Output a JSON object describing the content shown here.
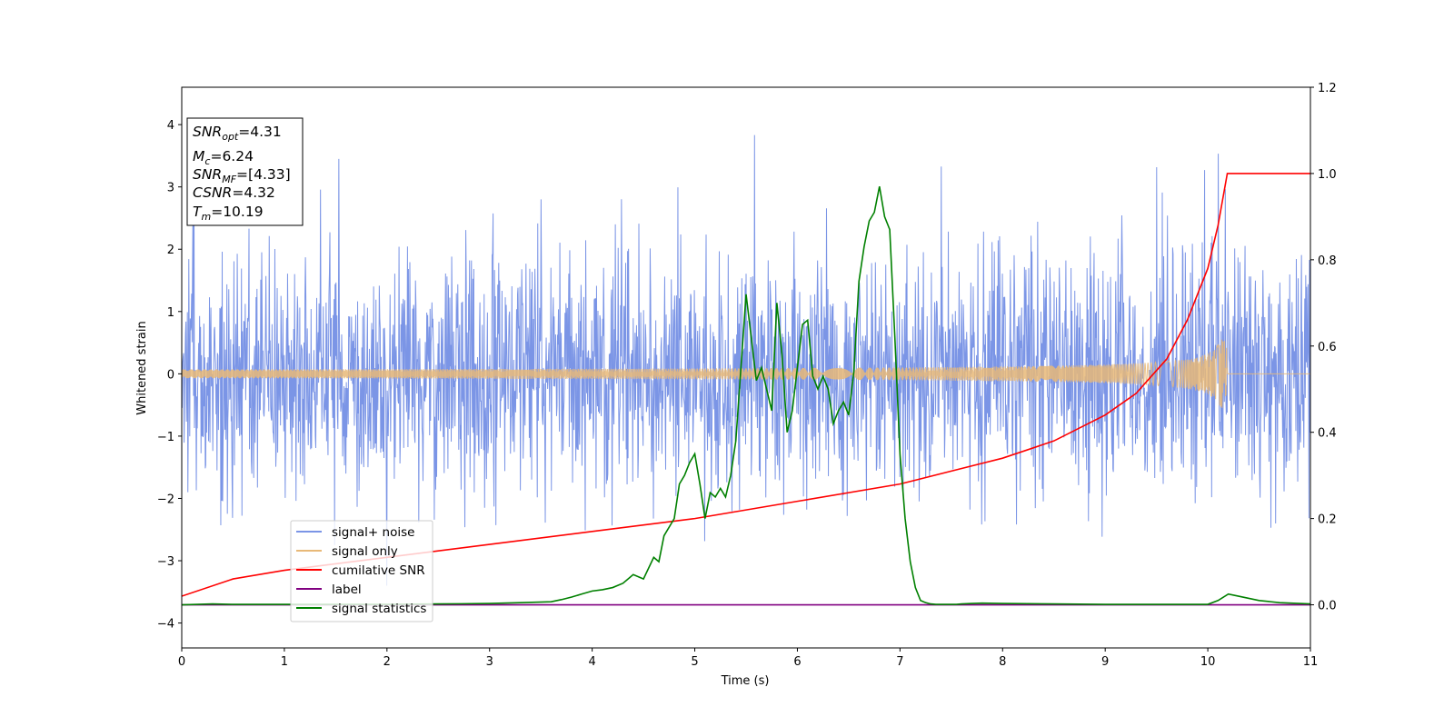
{
  "chart_data": {
    "type": "line",
    "xlabel": "Time (s)",
    "ylabel": "Whitened strain",
    "xlim": [
      0,
      11
    ],
    "ylim_left": [
      -4.4,
      4.6
    ],
    "ylim_right": [
      -0.1,
      1.2
    ],
    "x_ticks": [
      "0",
      "1",
      "2",
      "3",
      "4",
      "5",
      "6",
      "7",
      "8",
      "9",
      "10",
      "11"
    ],
    "y_ticks_left": [
      "−4",
      "−3",
      "−2",
      "−1",
      "0",
      "1",
      "2",
      "3",
      "4"
    ],
    "y_ticks_right": [
      "0.0",
      "0.2",
      "0.4",
      "0.6",
      "0.8",
      "1.0",
      "1.2"
    ],
    "legend_position": "lower-left",
    "info_box": {
      "snr_opt": "4.31",
      "mc": "6.24",
      "snr_mf": "[4.33]",
      "csnr": "4.32",
      "tm": "10.19"
    },
    "series": [
      {
        "name": "signal+ noise",
        "axis": "left",
        "color": "#7b95e6",
        "description_kind": "noise",
        "merger_time": 10.19
      },
      {
        "name": "signal only",
        "axis": "left",
        "color": "#e8b978",
        "description_kind": "chirp",
        "merger_time": 10.19,
        "peak_amplitude": 0.55
      },
      {
        "name": "cumilative SNR",
        "axis": "right",
        "color": "#ff0000",
        "x": [
          0,
          0.5,
          1,
          2,
          3,
          4,
          5,
          6,
          7,
          7.5,
          8,
          8.5,
          9,
          9.3,
          9.6,
          9.8,
          10,
          10.1,
          10.19,
          10.2,
          11
        ],
        "values": [
          0.02,
          0.06,
          0.08,
          0.11,
          0.14,
          0.17,
          0.2,
          0.24,
          0.28,
          0.31,
          0.34,
          0.38,
          0.44,
          0.49,
          0.57,
          0.66,
          0.78,
          0.88,
          1.0,
          1.0,
          1.0
        ]
      },
      {
        "name": "label",
        "axis": "right",
        "color": "#800080",
        "x": [
          0,
          11
        ],
        "values": [
          0,
          0
        ]
      },
      {
        "name": "signal statistics",
        "axis": "right",
        "color": "#008000",
        "x": [
          0,
          0.3,
          0.5,
          1,
          1.5,
          2,
          2.5,
          3,
          3.3,
          3.6,
          3.7,
          3.8,
          3.9,
          4.0,
          4.1,
          4.2,
          4.3,
          4.4,
          4.5,
          4.6,
          4.65,
          4.7,
          4.8,
          4.85,
          4.9,
          4.95,
          5.0,
          5.05,
          5.1,
          5.15,
          5.2,
          5.25,
          5.3,
          5.35,
          5.4,
          5.45,
          5.5,
          5.55,
          5.6,
          5.65,
          5.7,
          5.75,
          5.8,
          5.85,
          5.9,
          5.95,
          6.0,
          6.05,
          6.1,
          6.15,
          6.2,
          6.25,
          6.3,
          6.35,
          6.4,
          6.45,
          6.5,
          6.55,
          6.6,
          6.65,
          6.7,
          6.75,
          6.8,
          6.85,
          6.9,
          6.95,
          7.0,
          7.05,
          7.1,
          7.15,
          7.2,
          7.25,
          7.3,
          7.35,
          7.4,
          7.45,
          7.5,
          7.55,
          7.6,
          7.7,
          7.8,
          8.0,
          8.5,
          9.0,
          9.5,
          10.0,
          10.1,
          10.2,
          10.3,
          10.5,
          10.7,
          11.0
        ],
        "values": [
          0.0,
          0.002,
          0.001,
          0.001,
          0.001,
          0.001,
          0.002,
          0.003,
          0.005,
          0.007,
          0.012,
          0.018,
          0.025,
          0.032,
          0.035,
          0.04,
          0.05,
          0.07,
          0.06,
          0.11,
          0.1,
          0.16,
          0.2,
          0.28,
          0.3,
          0.33,
          0.35,
          0.28,
          0.2,
          0.26,
          0.25,
          0.27,
          0.25,
          0.3,
          0.38,
          0.55,
          0.72,
          0.62,
          0.52,
          0.55,
          0.5,
          0.45,
          0.7,
          0.58,
          0.4,
          0.45,
          0.55,
          0.65,
          0.66,
          0.53,
          0.5,
          0.53,
          0.5,
          0.42,
          0.45,
          0.47,
          0.44,
          0.54,
          0.75,
          0.83,
          0.89,
          0.91,
          0.97,
          0.9,
          0.87,
          0.62,
          0.35,
          0.2,
          0.1,
          0.04,
          0.01,
          0.005,
          0.002,
          0.001,
          0.001,
          0.001,
          0.001,
          0.001,
          0.002,
          0.003,
          0.004,
          0.003,
          0.002,
          0.001,
          0.001,
          0.001,
          0.01,
          0.025,
          0.02,
          0.01,
          0.005,
          0.002
        ]
      }
    ]
  }
}
